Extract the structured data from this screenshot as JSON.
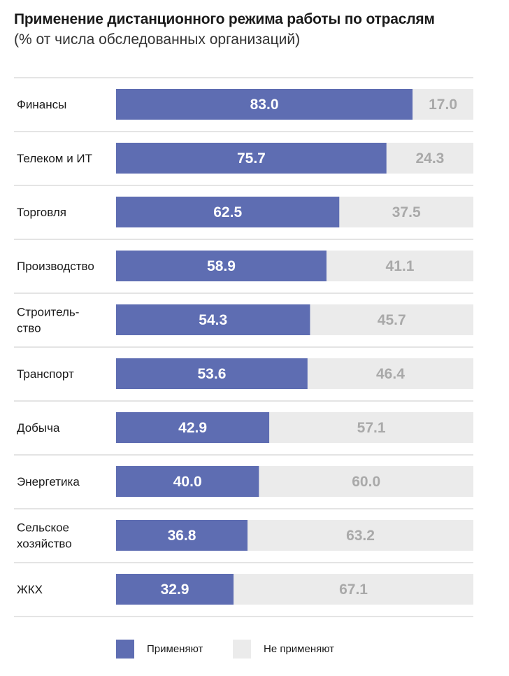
{
  "chart_data": {
    "type": "bar",
    "orientation": "horizontal",
    "stacked": true,
    "title": "Применение дистанционного режима работы по отраслям",
    "subtitle": "(% от числа обследованных организаций)",
    "categories": [
      [
        "Финансы"
      ],
      [
        "Телеком и ИТ"
      ],
      [
        "Торговля"
      ],
      [
        "Производство"
      ],
      [
        "Строитель-",
        "ство"
      ],
      [
        "Транспорт"
      ],
      [
        "Добыча"
      ],
      [
        "Энергетика"
      ],
      [
        "Сельское",
        "хозяйство"
      ],
      [
        "ЖКХ"
      ]
    ],
    "series": [
      {
        "name": "Применяют",
        "color": "#5e6db2",
        "values": [
          83.0,
          75.7,
          62.5,
          58.9,
          54.3,
          53.6,
          42.9,
          40.0,
          36.8,
          32.9
        ],
        "labels": [
          "83.0",
          "75.7",
          "62.5",
          "58.9",
          "54.3",
          "53.6",
          "42.9",
          "40.0",
          "36.8",
          "32.9"
        ]
      },
      {
        "name": "Не применяют",
        "color": "#ebebeb",
        "values": [
          17.0,
          24.3,
          37.5,
          41.1,
          45.7,
          46.4,
          57.1,
          60.0,
          63.2,
          67.1
        ],
        "labels": [
          "17.0",
          "24.3",
          "37.5",
          "41.1",
          "45.7",
          "46.4",
          "57.1",
          "60.0",
          "63.2",
          "67.1"
        ]
      }
    ],
    "xlim": [
      0,
      100
    ],
    "grid": false,
    "legend": "bottom",
    "legend_labels": [
      "Применяют",
      "Не применяют"
    ]
  }
}
